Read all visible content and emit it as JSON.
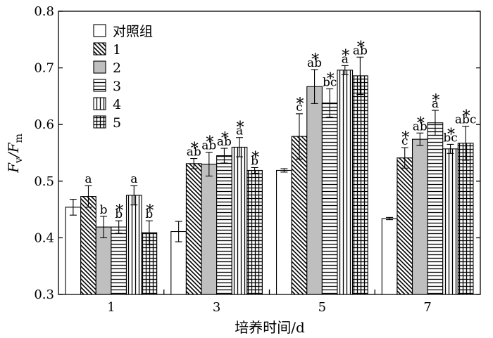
{
  "chart_data": {
    "type": "bar",
    "title": "",
    "xlabel": "培养时间/d",
    "ylabel": "Fv/Fm",
    "ylabel_main": "F",
    "ylabel_sub1": "v",
    "ylabel_sep": "/F",
    "ylabel_sub2": "m",
    "ylim": [
      0.3,
      0.8
    ],
    "yticks": [
      "0.3",
      "0.4",
      "0.5",
      "0.6",
      "0.7",
      "0.8"
    ],
    "categories": [
      "1",
      "3",
      "5",
      "7"
    ],
    "legend_position": "top-left",
    "grid": false,
    "series": [
      {
        "name": "对照组",
        "pattern": "none",
        "values": [
          0.454,
          0.411,
          0.519,
          0.434
        ],
        "errors": [
          0.014,
          0.018,
          0.003,
          0.002
        ],
        "letters": [
          "",
          "",
          "",
          ""
        ],
        "stars": [
          false,
          false,
          false,
          false
        ]
      },
      {
        "name": "1",
        "pattern": "diagonal",
        "values": [
          0.473,
          0.531,
          0.579,
          0.541
        ],
        "errors": [
          0.019,
          0.009,
          0.04,
          0.018
        ],
        "letters": [
          "a",
          "ab",
          "c",
          "c"
        ],
        "stars": [
          false,
          true,
          true,
          true
        ]
      },
      {
        "name": "2",
        "pattern": "gray",
        "values": [
          0.419,
          0.53,
          0.667,
          0.574
        ],
        "errors": [
          0.019,
          0.021,
          0.03,
          0.011
        ],
        "letters": [
          "b",
          "ab",
          "ab",
          "ab"
        ],
        "stars": [
          false,
          true,
          true,
          true
        ]
      },
      {
        "name": "3",
        "pattern": "horizontal",
        "values": [
          0.419,
          0.545,
          0.638,
          0.603
        ],
        "errors": [
          0.011,
          0.013,
          0.025,
          0.022
        ],
        "letters": [
          "b",
          "ab",
          "bc",
          "a"
        ],
        "stars": [
          true,
          true,
          true,
          true
        ]
      },
      {
        "name": "4",
        "pattern": "vertical",
        "values": [
          0.475,
          0.56,
          0.696,
          0.557
        ],
        "errors": [
          0.017,
          0.017,
          0.008,
          0.008
        ],
        "letters": [
          "a",
          "a",
          "a",
          "bc"
        ],
        "stars": [
          false,
          true,
          true,
          true
        ]
      },
      {
        "name": "5",
        "pattern": "grid",
        "values": [
          0.409,
          0.519,
          0.686,
          0.567
        ],
        "errors": [
          0.021,
          0.005,
          0.033,
          0.03
        ],
        "letters": [
          "b",
          "b",
          "ab",
          "abc"
        ],
        "stars": [
          true,
          true,
          true,
          true
        ]
      }
    ]
  }
}
